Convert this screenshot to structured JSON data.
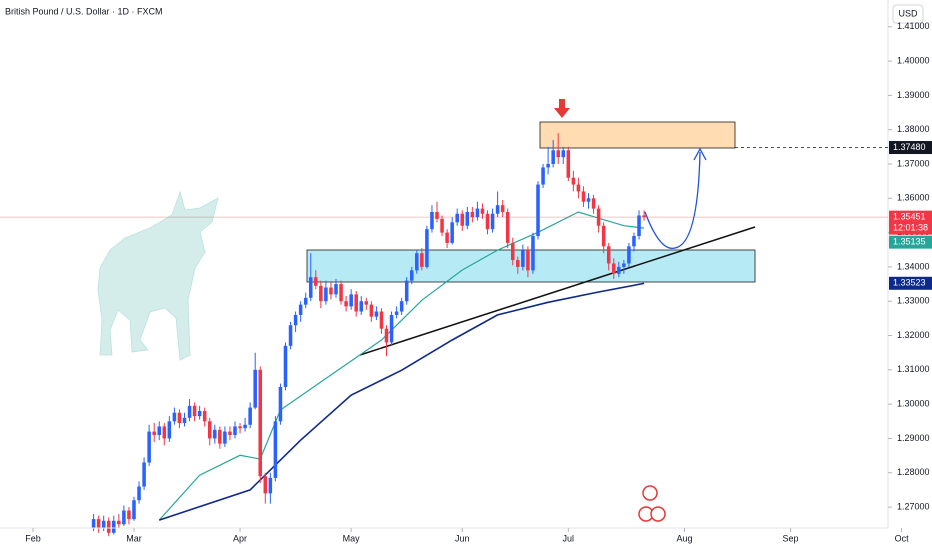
{
  "chart_data": {
    "type": "candlestick",
    "title": "British Pound / U.S. Dollar · 1D · FXCM",
    "currency": "USD",
    "up_color": "#2962ff",
    "down_color": "#f23645",
    "xlim": [
      -6.53,
      169.3
    ],
    "xticks": [
      {
        "value": 0,
        "label": "Feb"
      },
      {
        "value": 20,
        "label": "Mar"
      },
      {
        "value": 41,
        "label": "Apr"
      },
      {
        "value": 63,
        "label": "May"
      },
      {
        "value": 85,
        "label": "Jun"
      },
      {
        "value": 106,
        "label": "Jul"
      },
      {
        "value": 129,
        "label": "Aug"
      },
      {
        "value": 150,
        "label": "Sep"
      },
      {
        "value": 172,
        "label": "Oct"
      }
    ],
    "ylim": [
      1.2639,
      1.4178
    ],
    "yticks": [
      {
        "value": 1.27,
        "label": "1.27000"
      },
      {
        "value": 1.28,
        "label": "1.28000"
      },
      {
        "value": 1.29,
        "label": "1.29000"
      },
      {
        "value": 1.3,
        "label": "1.30000"
      },
      {
        "value": 1.31,
        "label": "1.31000"
      },
      {
        "value": 1.32,
        "label": "1.32000"
      },
      {
        "value": 1.33,
        "label": "1.33000"
      },
      {
        "value": 1.34,
        "label": "1.34000"
      },
      {
        "value": 1.35,
        "label": "1.35000"
      },
      {
        "value": 1.36,
        "label": "1.36000"
      },
      {
        "value": 1.37,
        "label": "1.37000"
      },
      {
        "value": 1.38,
        "label": "1.38000"
      },
      {
        "value": 1.39,
        "label": "1.39000"
      },
      {
        "value": 1.4,
        "label": "1.40000"
      },
      {
        "value": 1.41,
        "label": "1.41000"
      }
    ],
    "x": [
      12,
      13,
      14,
      15,
      16,
      17,
      18,
      19,
      20,
      21,
      22,
      23,
      24,
      25,
      26,
      27,
      28,
      29,
      30,
      31,
      32,
      33,
      34,
      35,
      36,
      37,
      38,
      39,
      40,
      41,
      42,
      43,
      44,
      45,
      46,
      47,
      48,
      49,
      50,
      51,
      52,
      53,
      54,
      55,
      56,
      57,
      58,
      59,
      60,
      61,
      62,
      63,
      64,
      65,
      66,
      67,
      68,
      69,
      70,
      71,
      72,
      73,
      74,
      75,
      76,
      77,
      78,
      79,
      80,
      81,
      82,
      83,
      84,
      85,
      86,
      87,
      88,
      89,
      90,
      91,
      92,
      93,
      94,
      95,
      96,
      97,
      98,
      99,
      100,
      101,
      102,
      103,
      104,
      105,
      106,
      107,
      108,
      109,
      110,
      111,
      112,
      113,
      114,
      115,
      116,
      117,
      118,
      119,
      120,
      121
    ],
    "ohlc": [
      [
        1.264,
        1.268,
        1.263,
        1.2665
      ],
      [
        1.2665,
        1.2675,
        1.2625,
        1.264
      ],
      [
        1.264,
        1.2675,
        1.263,
        1.266
      ],
      [
        1.266,
        1.267,
        1.2615,
        1.2625
      ],
      [
        1.2625,
        1.2675,
        1.262,
        1.266
      ],
      [
        1.266,
        1.268,
        1.264,
        1.265
      ],
      [
        1.265,
        1.2705,
        1.2645,
        1.269
      ],
      [
        1.269,
        1.27,
        1.265,
        1.2665
      ],
      [
        1.2665,
        1.273,
        1.266,
        1.272
      ],
      [
        1.272,
        1.2775,
        1.271,
        1.276
      ],
      [
        1.276,
        1.2845,
        1.275,
        1.283
      ],
      [
        1.283,
        1.294,
        1.282,
        1.292
      ],
      [
        1.292,
        1.2945,
        1.289,
        1.291
      ],
      [
        1.291,
        1.295,
        1.2895,
        1.2935
      ],
      [
        1.2935,
        1.2945,
        1.288,
        1.29
      ],
      [
        1.29,
        1.2965,
        1.289,
        1.295
      ],
      [
        1.295,
        1.299,
        1.294,
        1.2975
      ],
      [
        1.2975,
        1.2985,
        1.293,
        1.2945
      ],
      [
        1.2945,
        1.2975,
        1.2935,
        1.296
      ],
      [
        1.296,
        1.3015,
        1.295,
        1.2995
      ],
      [
        1.2995,
        1.3005,
        1.295,
        1.2965
      ],
      [
        1.2965,
        1.2995,
        1.2955,
        1.298
      ],
      [
        1.298,
        1.299,
        1.2935,
        1.295
      ],
      [
        1.295,
        1.296,
        1.288,
        1.29
      ],
      [
        1.29,
        1.294,
        1.2885,
        1.2925
      ],
      [
        1.2925,
        1.2935,
        1.287,
        1.2885
      ],
      [
        1.2885,
        1.2935,
        1.2875,
        1.292
      ],
      [
        1.292,
        1.2935,
        1.2895,
        1.291
      ],
      [
        1.291,
        1.295,
        1.29,
        1.2935
      ],
      [
        1.2935,
        1.2945,
        1.2915,
        1.293
      ],
      [
        1.293,
        1.296,
        1.292,
        1.294
      ],
      [
        1.294,
        1.3005,
        1.293,
        1.299
      ],
      [
        1.299,
        1.315,
        1.2985,
        1.31
      ],
      [
        1.31,
        1.311,
        1.277,
        1.279
      ],
      [
        1.279,
        1.28,
        1.271,
        1.274
      ],
      [
        1.274,
        1.28,
        1.271,
        1.2785
      ],
      [
        1.2785,
        1.2965,
        1.2775,
        1.295
      ],
      [
        1.295,
        1.306,
        1.294,
        1.305
      ],
      [
        1.305,
        1.318,
        1.304,
        1.317
      ],
      [
        1.317,
        1.324,
        1.316,
        1.323
      ],
      [
        1.323,
        1.327,
        1.321,
        1.326
      ],
      [
        1.326,
        1.33,
        1.324,
        1.329
      ],
      [
        1.329,
        1.3325,
        1.328,
        1.331
      ],
      [
        1.331,
        1.344,
        1.33,
        1.337
      ],
      [
        1.337,
        1.339,
        1.3335,
        1.3345
      ],
      [
        1.3345,
        1.336,
        1.328,
        1.33
      ],
      [
        1.33,
        1.336,
        1.329,
        1.334
      ],
      [
        1.334,
        1.3355,
        1.3305,
        1.332
      ],
      [
        1.332,
        1.3365,
        1.331,
        1.335
      ],
      [
        1.335,
        1.336,
        1.329,
        1.33
      ],
      [
        1.33,
        1.3315,
        1.327,
        1.3285
      ],
      [
        1.3285,
        1.3335,
        1.3275,
        1.332
      ],
      [
        1.332,
        1.333,
        1.3255,
        1.327
      ],
      [
        1.327,
        1.3315,
        1.326,
        1.33
      ],
      [
        1.33,
        1.331,
        1.3275,
        1.329
      ],
      [
        1.329,
        1.33,
        1.324,
        1.3255
      ],
      [
        1.3255,
        1.3285,
        1.3245,
        1.327
      ],
      [
        1.327,
        1.328,
        1.3205,
        1.322
      ],
      [
        1.322,
        1.323,
        1.314,
        1.318
      ],
      [
        1.318,
        1.327,
        1.317,
        1.326
      ],
      [
        1.326,
        1.3285,
        1.325,
        1.327
      ],
      [
        1.327,
        1.331,
        1.326,
        1.33
      ],
      [
        1.33,
        1.337,
        1.329,
        1.336
      ],
      [
        1.336,
        1.34,
        1.335,
        1.339
      ],
      [
        1.339,
        1.345,
        1.338,
        1.344
      ],
      [
        1.344,
        1.3455,
        1.339,
        1.34
      ],
      [
        1.34,
        1.352,
        1.3395,
        1.351
      ],
      [
        1.351,
        1.358,
        1.35,
        1.356
      ],
      [
        1.356,
        1.359,
        1.353,
        1.354
      ],
      [
        1.354,
        1.355,
        1.349,
        1.35
      ],
      [
        1.35,
        1.351,
        1.3455,
        1.347
      ],
      [
        1.347,
        1.3545,
        1.3465,
        1.353
      ],
      [
        1.353,
        1.357,
        1.352,
        1.3555
      ],
      [
        1.3555,
        1.3565,
        1.3505,
        1.352
      ],
      [
        1.352,
        1.3575,
        1.351,
        1.356
      ],
      [
        1.356,
        1.3575,
        1.353,
        1.3545
      ],
      [
        1.3545,
        1.359,
        1.3535,
        1.357
      ],
      [
        1.357,
        1.3585,
        1.354,
        1.3555
      ],
      [
        1.3555,
        1.3565,
        1.3495,
        1.351
      ],
      [
        1.351,
        1.357,
        1.35,
        1.3555
      ],
      [
        1.3555,
        1.362,
        1.3545,
        1.358
      ],
      [
        1.358,
        1.3595,
        1.3545,
        1.356
      ],
      [
        1.356,
        1.357,
        1.3455,
        1.347
      ],
      [
        1.347,
        1.3485,
        1.3405,
        1.342
      ],
      [
        1.342,
        1.343,
        1.338,
        1.34
      ],
      [
        1.34,
        1.3465,
        1.339,
        1.345
      ],
      [
        1.345,
        1.346,
        1.337,
        1.339
      ],
      [
        1.339,
        1.35,
        1.338,
        1.349
      ],
      [
        1.349,
        1.365,
        1.348,
        1.364
      ],
      [
        1.364,
        1.37,
        1.363,
        1.369
      ],
      [
        1.369,
        1.375,
        1.367,
        1.37
      ],
      [
        1.37,
        1.377,
        1.369,
        1.374
      ],
      [
        1.374,
        1.379,
        1.37,
        1.372
      ],
      [
        1.372,
        1.375,
        1.37,
        1.374
      ],
      [
        1.374,
        1.375,
        1.365,
        1.366
      ],
      [
        1.366,
        1.368,
        1.362,
        1.364
      ],
      [
        1.364,
        1.366,
        1.36,
        1.362
      ],
      [
        1.362,
        1.3635,
        1.3575,
        1.359
      ],
      [
        1.359,
        1.3615,
        1.357,
        1.36
      ],
      [
        1.36,
        1.361,
        1.3555,
        1.357
      ],
      [
        1.357,
        1.358,
        1.35,
        1.352
      ],
      [
        1.352,
        1.353,
        1.344,
        1.346
      ],
      [
        1.346,
        1.347,
        1.339,
        1.341
      ],
      [
        1.341,
        1.3425,
        1.3365,
        1.338
      ],
      [
        1.338,
        1.3415,
        1.337,
        1.34
      ],
      [
        1.34,
        1.342,
        1.338,
        1.341
      ],
      [
        1.341,
        1.347,
        1.34,
        1.346
      ],
      [
        1.346,
        1.35,
        1.3445,
        1.349
      ],
      [
        1.349,
        1.3565,
        1.348,
        1.355
      ],
      [
        1.355,
        1.3565,
        1.3535,
        1.3545
      ]
    ],
    "lines": [
      {
        "color": "#26a69a",
        "x": [
          25,
          33,
          41,
          45,
          49,
          59,
          69,
          77,
          85,
          92,
          100,
          108,
          112,
          117,
          121
        ],
        "values": [
          1.2662,
          1.2793,
          1.2851,
          1.284,
          1.2983,
          1.3085,
          1.3187,
          1.3303,
          1.3391,
          1.3449,
          1.3501,
          1.356,
          1.3542,
          1.352,
          1.3513
        ]
      },
      {
        "color": "#0d2a8a",
        "x": [
          25,
          43,
          53,
          63,
          73,
          83,
          92,
          102,
          112,
          121
        ],
        "values": [
          1.2662,
          1.275,
          1.2895,
          1.3026,
          1.3099,
          1.3187,
          1.326,
          1.3297,
          1.3327,
          1.3352
        ]
      }
    ],
    "price_labels": [
      {
        "value": 1.3748,
        "label": "1.37480",
        "color": "#131722"
      },
      {
        "value": 1.35451,
        "label": "1.35451",
        "color": "#f23645"
      },
      {
        "value": 1.35135,
        "label": "1.35135",
        "color": "#26a69a"
      },
      {
        "value": 1.33523,
        "label": "1.33523",
        "color": "#0d2a8a"
      }
    ],
    "countdown": "12:01:38"
  }
}
